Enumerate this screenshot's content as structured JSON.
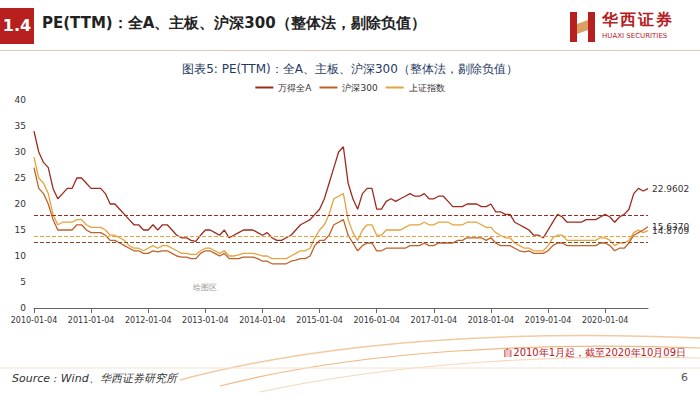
{
  "header": {
    "section": "1.4",
    "title": "PE(TTM)：全A、主板、沪深300（整体法，剔除负值）"
  },
  "logo": {
    "name": "华西证券",
    "name_en": "HUAXI SECURITIES"
  },
  "footer": {
    "note": "自2010年1月起，截至2020年10月09日",
    "source": "Source : Wind、华西证券研究所",
    "page": "6"
  },
  "chart_data": {
    "type": "line",
    "title": "图表5: PE(TTM)：全A、主板、沪深300（整体法，剔除负值）",
    "legend": "top",
    "grid": false,
    "ylim": [
      0,
      40
    ],
    "yticks": [
      0,
      5,
      10,
      15,
      20,
      25,
      30,
      35,
      40
    ],
    "categories": [
      "2010-01-04",
      null,
      null,
      null,
      null,
      null,
      null,
      null,
      null,
      null,
      null,
      null,
      "2011-01-04",
      null,
      null,
      null,
      null,
      null,
      null,
      null,
      null,
      null,
      null,
      null,
      "2012-01-04",
      null,
      null,
      null,
      null,
      null,
      null,
      null,
      null,
      null,
      null,
      null,
      "2013-01-04",
      null,
      null,
      null,
      null,
      null,
      null,
      null,
      null,
      null,
      null,
      null,
      "2014-01-04",
      null,
      null,
      null,
      null,
      null,
      null,
      null,
      null,
      null,
      null,
      null,
      "2015-01-04",
      null,
      null,
      null,
      null,
      null,
      null,
      null,
      null,
      null,
      null,
      null,
      "2016-01-04",
      null,
      null,
      null,
      null,
      null,
      null,
      null,
      null,
      null,
      null,
      null,
      "2017-01-04",
      null,
      null,
      null,
      null,
      null,
      null,
      null,
      null,
      null,
      null,
      null,
      "2018-01-04",
      null,
      null,
      null,
      null,
      null,
      null,
      null,
      null,
      null,
      null,
      null,
      "2019-01-04",
      null,
      null,
      null,
      null,
      null,
      null,
      null,
      null,
      null,
      null,
      null,
      "2020-01-04",
      null,
      null,
      null,
      null,
      null,
      null,
      null,
      null,
      null
    ],
    "series": [
      {
        "name": "万得全A",
        "color": "#9e2a1e",
        "line_style": "solid",
        "values": [
          34,
          30,
          28,
          27,
          23,
          21,
          22,
          23,
          23,
          25,
          25,
          24,
          23,
          23,
          23,
          22,
          20,
          20,
          19,
          18,
          17,
          16,
          16,
          15,
          15,
          16,
          15,
          16,
          16,
          15,
          14,
          13.5,
          13.5,
          13,
          12.8,
          14,
          15,
          15,
          14.5,
          14,
          15,
          13.5,
          14,
          14.5,
          15,
          15,
          15,
          14.5,
          14,
          14.5,
          13.5,
          13,
          13,
          13.5,
          14,
          15,
          16,
          16.5,
          17,
          18,
          19,
          21,
          24,
          27,
          30,
          31,
          24,
          21,
          19,
          22,
          23,
          23,
          19,
          19,
          20.5,
          21,
          20.5,
          21,
          21.5,
          22,
          21.5,
          21.5,
          22,
          21,
          21,
          21.5,
          21.5,
          20.5,
          19.5,
          19.5,
          19.5,
          20,
          20,
          20,
          19.5,
          19.5,
          20,
          18.5,
          18.5,
          18,
          18,
          16.5,
          16,
          15.5,
          15,
          14,
          14,
          13.5,
          15,
          16.5,
          18,
          17.5,
          16.5,
          16.5,
          16.5,
          16.5,
          17,
          17,
          17,
          17.5,
          18,
          17.5,
          16.5,
          17.5,
          18,
          19,
          22,
          23,
          22.5,
          22.9602
        ],
        "value_labels": [
          null,
          null,
          null,
          null,
          null,
          null,
          null,
          null,
          null,
          null,
          null,
          null,
          null,
          null,
          null,
          null,
          null,
          null,
          null,
          null,
          null,
          null,
          null,
          null,
          null,
          null,
          null,
          null,
          null,
          null,
          null,
          null,
          null,
          null,
          null,
          null,
          null,
          null,
          null,
          null,
          null,
          null,
          null,
          null,
          null,
          null,
          null,
          null,
          null,
          null,
          null,
          null,
          null,
          null,
          null,
          null,
          null,
          null,
          null,
          null,
          null,
          null,
          null,
          null,
          null,
          null,
          null,
          null,
          null,
          null,
          null,
          null,
          null,
          null,
          null,
          null,
          null,
          null,
          null,
          null,
          null,
          null,
          null,
          null,
          null,
          null,
          null,
          null,
          null,
          null,
          null,
          null,
          null,
          null,
          null,
          null,
          null,
          null,
          null,
          null,
          null,
          null,
          null,
          null,
          null,
          null,
          null,
          null,
          null,
          null,
          null,
          null,
          null,
          null,
          null,
          null,
          null,
          null,
          null,
          null,
          null,
          null,
          null,
          null,
          null,
          null,
          null,
          null,
          null,
          "22.9602"
        ],
        "reference_lines": [
          {
            "value": 17.8,
            "color": "#9e2a1e",
            "line_style": "dashed"
          }
        ]
      },
      {
        "name": "沪深300",
        "color": "#c0602a",
        "line_style": "solid",
        "values": [
          27,
          23,
          22,
          20,
          17,
          15,
          15,
          15,
          15,
          16,
          16,
          15,
          14.5,
          14.5,
          14.5,
          14,
          13,
          13,
          12.5,
          12,
          11.5,
          11,
          11,
          10.5,
          10.5,
          11,
          10.8,
          11,
          11,
          10.5,
          10,
          9.8,
          9.8,
          9.5,
          9.5,
          10.5,
          11,
          11,
          10.5,
          10,
          10.5,
          9.5,
          9.5,
          9.5,
          9.8,
          9.8,
          9.8,
          9.5,
          9,
          9,
          8.5,
          8.5,
          8.5,
          8.5,
          9,
          9.2,
          9.5,
          9.5,
          10,
          12,
          13,
          13,
          14,
          16,
          16.5,
          17,
          14,
          12.5,
          11,
          12,
          12.5,
          12.5,
          11,
          11,
          11.5,
          11.5,
          11.5,
          11.5,
          11.5,
          12,
          12,
          12,
          12.5,
          12,
          12,
          12.5,
          12.5,
          12.5,
          12.5,
          13,
          13,
          13.5,
          13.5,
          13.5,
          13.5,
          13,
          13.5,
          12.5,
          12,
          12,
          12,
          11.5,
          11,
          10.8,
          11,
          10.5,
          10.5,
          10.5,
          11,
          12,
          12.5,
          12.5,
          12,
          12,
          12,
          12,
          12,
          12,
          12,
          12.5,
          12.5,
          12,
          11,
          11.5,
          11.5,
          12.5,
          14,
          14.5,
          15,
          15.637
        ],
        "value_labels": [
          null,
          null,
          null,
          null,
          null,
          null,
          null,
          null,
          null,
          null,
          null,
          null,
          null,
          null,
          null,
          null,
          null,
          null,
          null,
          null,
          null,
          null,
          null,
          null,
          null,
          null,
          null,
          null,
          null,
          null,
          null,
          null,
          null,
          null,
          null,
          null,
          null,
          null,
          null,
          null,
          null,
          null,
          null,
          null,
          null,
          null,
          null,
          null,
          null,
          null,
          null,
          null,
          null,
          null,
          null,
          null,
          null,
          null,
          null,
          null,
          null,
          null,
          null,
          null,
          null,
          null,
          null,
          null,
          null,
          null,
          null,
          null,
          null,
          null,
          null,
          null,
          null,
          null,
          null,
          null,
          null,
          null,
          null,
          null,
          null,
          null,
          null,
          null,
          null,
          null,
          null,
          null,
          null,
          null,
          null,
          null,
          null,
          null,
          null,
          null,
          null,
          null,
          null,
          null,
          null,
          null,
          null,
          null,
          null,
          null,
          null,
          null,
          null,
          null,
          null,
          null,
          null,
          null,
          null,
          null,
          null,
          null,
          null,
          null,
          null,
          null,
          null,
          null,
          null,
          "15.6370"
        ],
        "reference_lines": [
          {
            "value": 12.6,
            "color": "#8a4a2a",
            "line_style": "dashed"
          }
        ]
      },
      {
        "name": "上证指数",
        "color": "#e6a23c",
        "line_style": "solid",
        "values": [
          29,
          25,
          24,
          22,
          18,
          16,
          16.5,
          16.5,
          16.5,
          17,
          17,
          16,
          15.5,
          15.5,
          15.5,
          15,
          14,
          14,
          13.5,
          13,
          12,
          11.5,
          11.5,
          11,
          11.5,
          12,
          11.5,
          12,
          12,
          11.5,
          11,
          10.5,
          10.5,
          10.3,
          10.3,
          11,
          11.5,
          11.5,
          11,
          10.5,
          11,
          10,
          10,
          10.2,
          10.5,
          10.5,
          10.5,
          10.3,
          10,
          10,
          9.5,
          9.5,
          9.5,
          9.5,
          10,
          10.5,
          11,
          11,
          11.5,
          13.5,
          15,
          16,
          18,
          21,
          21.5,
          22,
          17,
          14.5,
          13,
          15,
          16,
          16,
          14,
          14,
          15,
          15,
          15,
          15,
          15.5,
          16,
          16,
          16,
          16.5,
          16,
          16,
          16.5,
          16.5,
          16.5,
          16,
          16,
          16,
          16.5,
          16.5,
          16.5,
          16,
          15.5,
          15.5,
          14.5,
          14,
          13.5,
          13.5,
          12.5,
          12,
          11.5,
          11.5,
          11,
          11,
          11,
          12,
          13.5,
          14,
          14,
          13,
          13,
          13,
          13,
          13,
          13,
          13,
          13.5,
          13.5,
          13,
          12,
          12.5,
          12.5,
          13,
          14.5,
          15,
          14.5,
          14.8709
        ],
        "value_labels": [
          null,
          null,
          null,
          null,
          null,
          null,
          null,
          null,
          null,
          null,
          null,
          null,
          null,
          null,
          null,
          null,
          null,
          null,
          null,
          null,
          null,
          null,
          null,
          null,
          null,
          null,
          null,
          null,
          null,
          null,
          null,
          null,
          null,
          null,
          null,
          null,
          null,
          null,
          null,
          null,
          null,
          null,
          null,
          null,
          null,
          null,
          null,
          null,
          null,
          null,
          null,
          null,
          null,
          null,
          null,
          null,
          null,
          null,
          null,
          null,
          null,
          null,
          null,
          null,
          null,
          null,
          null,
          null,
          null,
          null,
          null,
          null,
          null,
          null,
          null,
          null,
          null,
          null,
          null,
          null,
          null,
          null,
          null,
          null,
          null,
          null,
          null,
          null,
          null,
          null,
          null,
          null,
          null,
          null,
          null,
          null,
          null,
          null,
          null,
          null,
          null,
          null,
          null,
          null,
          null,
          null,
          null,
          null,
          null,
          null,
          null,
          null,
          null,
          null,
          null,
          null,
          null,
          null,
          null,
          null,
          null,
          null,
          null,
          null,
          null,
          null,
          null,
          null,
          null,
          "14.8709"
        ],
        "reference_lines": [
          {
            "value": 13.8,
            "color": "#e6a23c",
            "line_style": "dashed"
          }
        ]
      }
    ],
    "annotations": [
      {
        "text": "绘图区",
        "x": 36,
        "y": 4
      }
    ]
  }
}
